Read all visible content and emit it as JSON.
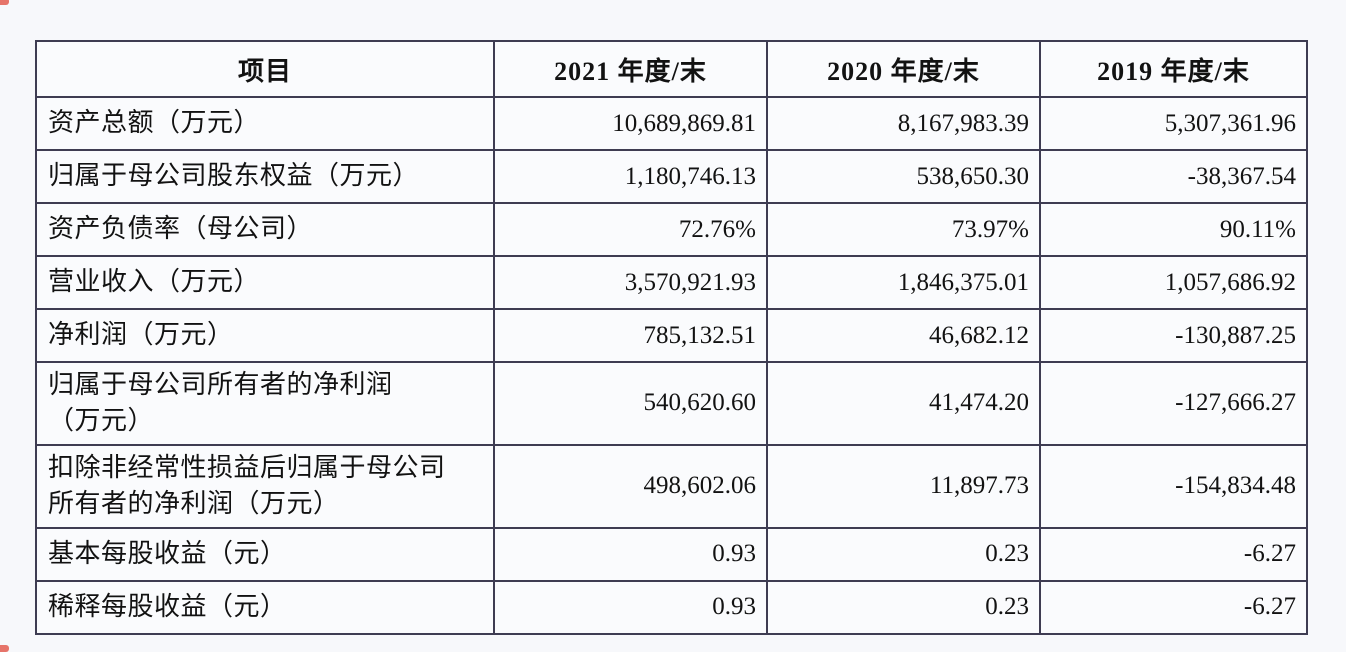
{
  "page": {
    "background": "#f7f8fb",
    "table_background": "#fafbfd",
    "border_color": "#3e3c52",
    "text_color": "#121212",
    "corner_mark_color": "#e0483a"
  },
  "table": {
    "columns": [
      {
        "key": "label",
        "header": "项目"
      },
      {
        "key": "v2021",
        "header": "2021 年度/末"
      },
      {
        "key": "v2020",
        "header": "2020 年度/末"
      },
      {
        "key": "v2019",
        "header": "2019 年度/末"
      }
    ],
    "rows": [
      {
        "label": "资产总额（万元）",
        "v2021": "10,689,869.81",
        "v2020": "8,167,983.39",
        "v2019": "5,307,361.96"
      },
      {
        "label": "归属于母公司股东权益（万元）",
        "v2021": "1,180,746.13",
        "v2020": "538,650.30",
        "v2019": "-38,367.54"
      },
      {
        "label": "资产负债率（母公司）",
        "v2021": "72.76%",
        "v2020": "73.97%",
        "v2019": "90.11%"
      },
      {
        "label": "营业收入（万元）",
        "v2021": "3,570,921.93",
        "v2020": "1,846,375.01",
        "v2019": "1,057,686.92"
      },
      {
        "label": "净利润（万元）",
        "v2021": "785,132.51",
        "v2020": "46,682.12",
        "v2019": "-130,887.25"
      },
      {
        "label": "归属于母公司所有者的净利润\n（万元）",
        "v2021": "540,620.60",
        "v2020": "41,474.20",
        "v2019": "-127,666.27"
      },
      {
        "label": "扣除非经常性损益后归属于母公司\n所有者的净利润（万元）",
        "v2021": "498,602.06",
        "v2020": "11,897.73",
        "v2019": "-154,834.48"
      },
      {
        "label": "基本每股收益（元）",
        "v2021": "0.93",
        "v2020": "0.23",
        "v2019": "-6.27"
      },
      {
        "label": "稀释每股收益（元）",
        "v2021": "0.93",
        "v2020": "0.23",
        "v2019": "-6.27"
      }
    ]
  }
}
